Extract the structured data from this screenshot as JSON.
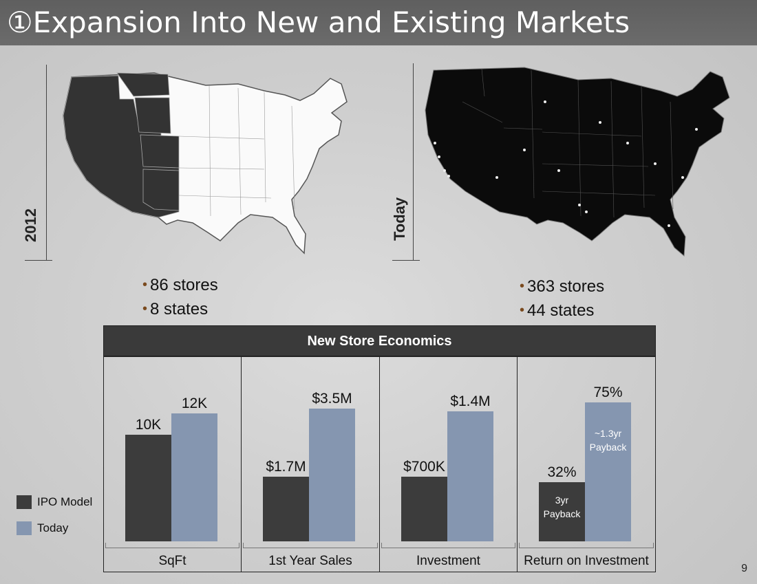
{
  "slide": {
    "title": "①Expansion Into New and Existing Markets",
    "page_number": "9"
  },
  "maps": {
    "left": {
      "year_label": "2012",
      "bullets": [
        "86 stores",
        "8 states"
      ]
    },
    "right": {
      "year_label": "Today",
      "bullets": [
        "363 stores",
        "44 states"
      ]
    }
  },
  "table": {
    "header": "New Store Economics"
  },
  "legend": [
    {
      "label": "IPO Model",
      "color": "#3c3c3c"
    },
    {
      "label": "Today",
      "color": "#8596b0"
    }
  ],
  "chart_data": [
    {
      "type": "bar",
      "category": "SqFt",
      "series": [
        {
          "name": "IPO Model",
          "value": 10,
          "label": "10K"
        },
        {
          "name": "Today",
          "value": 12,
          "label": "12K"
        }
      ],
      "ylim": [
        0,
        15
      ]
    },
    {
      "type": "bar",
      "category": "1st Year Sales",
      "series": [
        {
          "name": "IPO Model",
          "value": 1.7,
          "label": "$1.7M"
        },
        {
          "name": "Today",
          "value": 3.5,
          "label": "$3.5M"
        }
      ],
      "ylim": [
        0,
        4.2
      ]
    },
    {
      "type": "bar",
      "category": "Investment",
      "series": [
        {
          "name": "IPO Model",
          "value": 0.7,
          "label": "$700K"
        },
        {
          "name": "Today",
          "value": 1.4,
          "label": "$1.4M"
        }
      ],
      "ylim": [
        0,
        1.72
      ]
    },
    {
      "type": "bar",
      "category": "Return on Investment",
      "series": [
        {
          "name": "IPO Model",
          "value": 32,
          "label": "32%",
          "note": [
            "3yr",
            "Payback"
          ]
        },
        {
          "name": "Today",
          "value": 75,
          "label": "75%",
          "note": [
            "~1.3yr",
            "Payback"
          ]
        }
      ],
      "ylim": [
        0,
        86
      ]
    }
  ]
}
